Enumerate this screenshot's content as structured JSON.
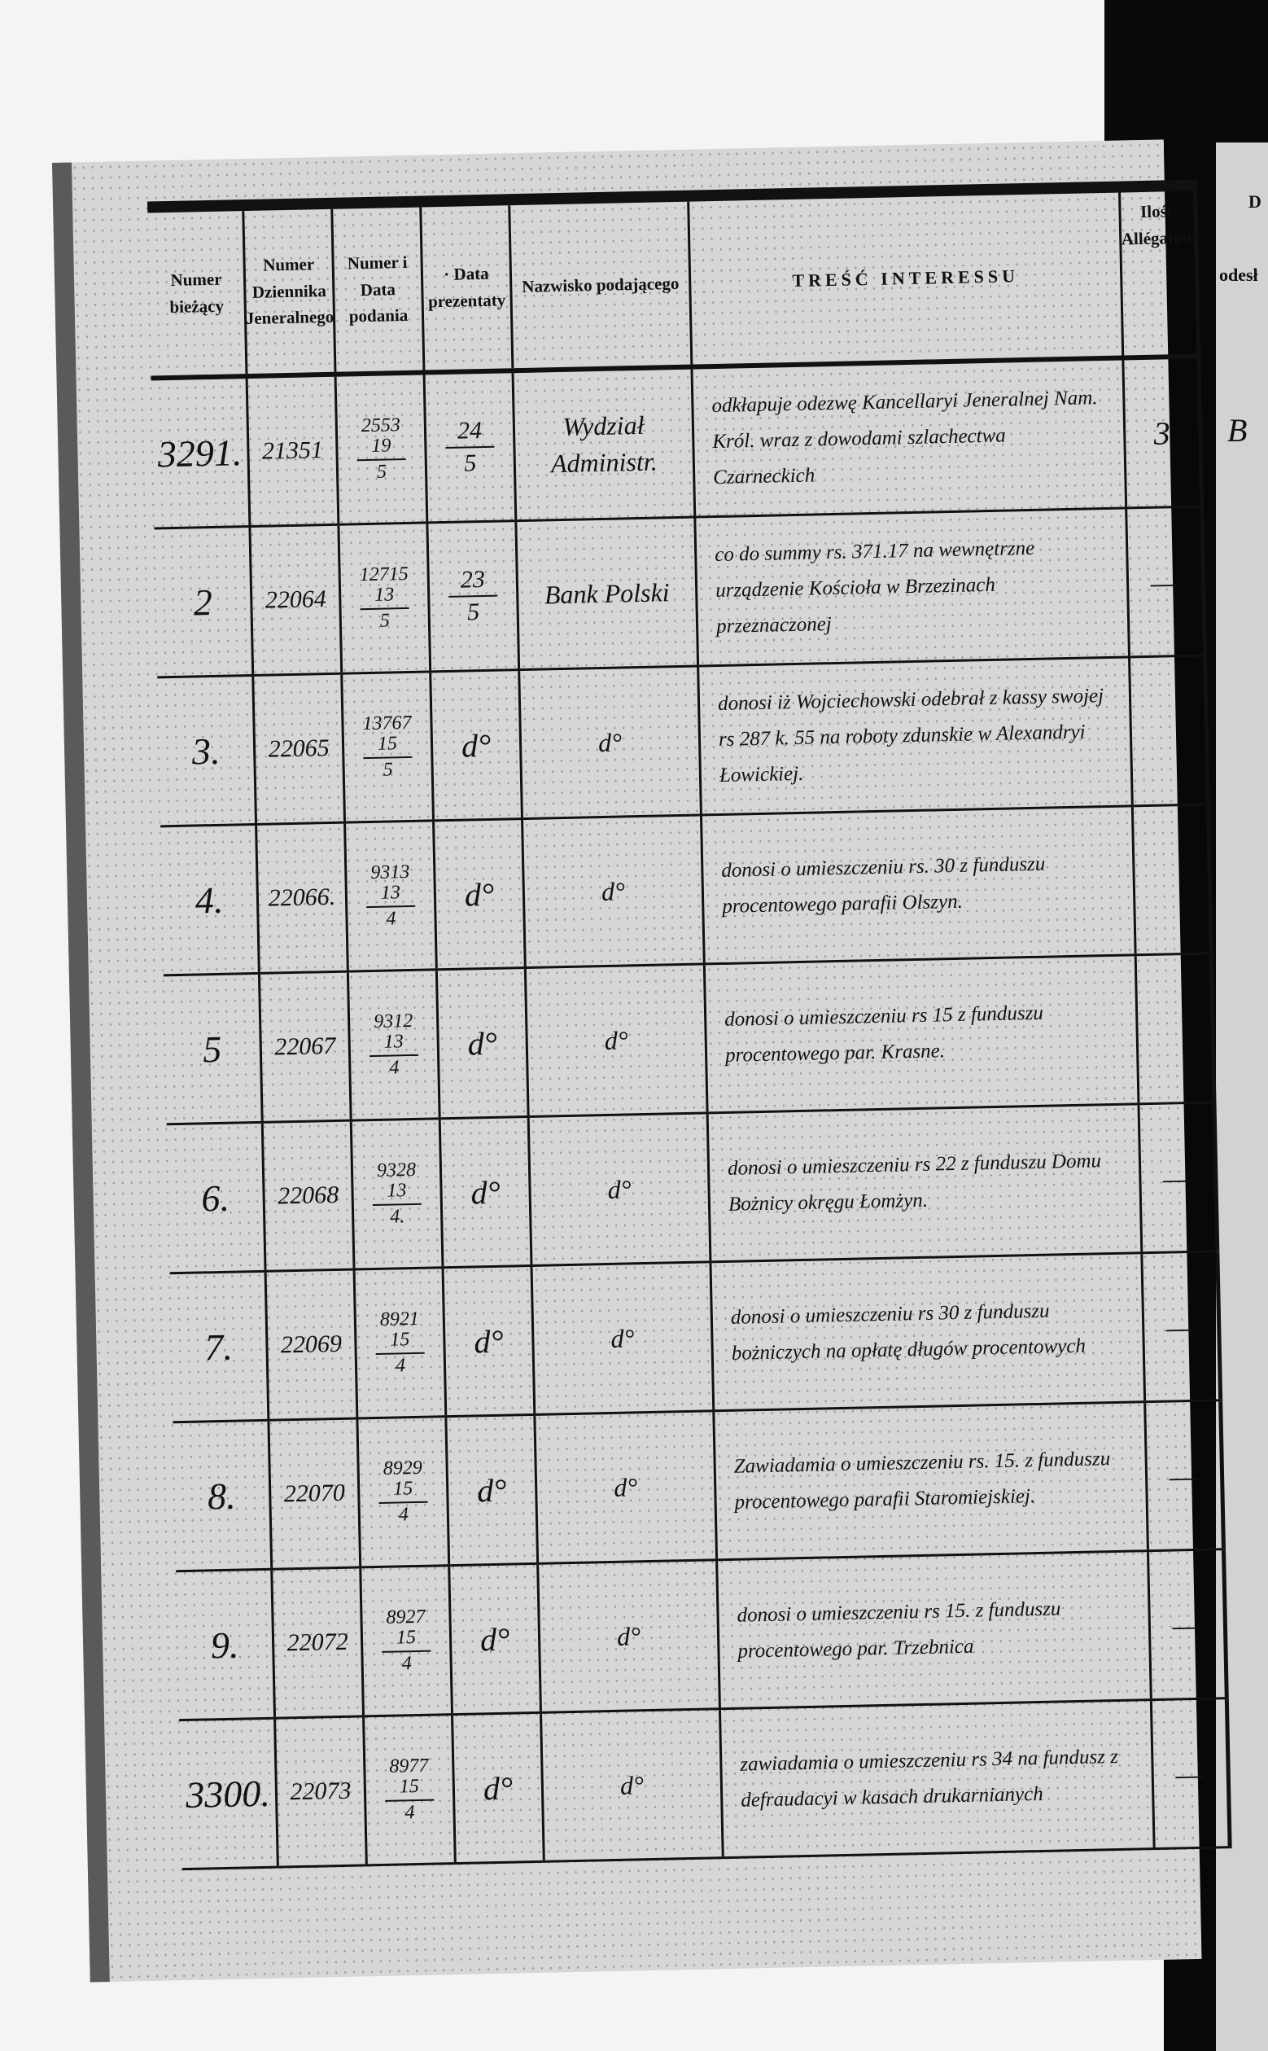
{
  "headers": {
    "numer_biezacy": "Numer bieżący",
    "numer_dziennika": "Numer Dziennika Jeneralnego",
    "numer_data_podania": "Numer i Data podania",
    "data_prezentaty": "· Data prezentaty",
    "nazwisko": "Nazwisko podającego",
    "tresc": "TREŚĆ INTERESSU",
    "ilosc_allegatow": "Ilość Allégatów"
  },
  "right_page": {
    "header_fragment_1": "D",
    "header_fragment_2": "odesł",
    "row_fragment": "B"
  },
  "rows": [
    {
      "nr": "3291.",
      "dziennik": "21351",
      "podanie_nr": "2553",
      "podanie_dzien": "19",
      "podanie_mies": "5",
      "prez_dzien": "24",
      "prez_mies": "5",
      "nazwisko": "Wydział Administr.",
      "tresc": "odkłapuje odezwę Kancellaryi Jeneralnej Nam. Król. wraz z dowodami szlachectwa Czarneckich",
      "allegaty": "3"
    },
    {
      "nr": "2",
      "dziennik": "22064",
      "podanie_nr": "12715",
      "podanie_dzien": "13",
      "podanie_mies": "5",
      "prez_dzien": "23",
      "prez_mies": "5",
      "nazwisko": "Bank Polski",
      "tresc": "co do summy rs. 371.17 na wewnętrzne urządzenie Kościoła w Brzezinach przeznaczonej",
      "allegaty": "—"
    },
    {
      "nr": "3.",
      "dziennik": "22065",
      "podanie_nr": "13767",
      "podanie_dzien": "15",
      "podanie_mies": "5",
      "prez_dzien": "d°",
      "prez_mies": "",
      "nazwisko": "d°",
      "tresc": "donosi iż Wojciechowski odebrał z kassy swojej rs 287 k. 55 na roboty zdunskie w Alexandryi Łowickiej.",
      "allegaty": ""
    },
    {
      "nr": "4.",
      "dziennik": "22066.",
      "podanie_nr": "9313",
      "podanie_dzien": "13",
      "podanie_mies": "4",
      "prez_dzien": "d°",
      "prez_mies": "",
      "nazwisko": "d°",
      "tresc": "donosi o umieszczeniu rs. 30 z funduszu procentowego parafii Olszyn.",
      "allegaty": ""
    },
    {
      "nr": "5",
      "dziennik": "22067",
      "podanie_nr": "9312",
      "podanie_dzien": "13",
      "podanie_mies": "4",
      "prez_dzien": "d°",
      "prez_mies": "",
      "nazwisko": "d°",
      "tresc": "donosi o umieszczeniu rs 15 z funduszu procentowego par. Krasne.",
      "allegaty": ""
    },
    {
      "nr": "6.",
      "dziennik": "22068",
      "podanie_nr": "9328",
      "podanie_dzien": "13",
      "podanie_mies": "4.",
      "prez_dzien": "d°",
      "prez_mies": "",
      "nazwisko": "d°",
      "tresc": "donosi o umieszczeniu rs 22 z funduszu Domu Bożnicy okręgu Łomżyn.",
      "allegaty": "—"
    },
    {
      "nr": "7.",
      "dziennik": "22069",
      "podanie_nr": "8921",
      "podanie_dzien": "15",
      "podanie_mies": "4",
      "prez_dzien": "d°",
      "prez_mies": "",
      "nazwisko": "d°",
      "tresc": "donosi o umieszczeniu rs 30 z funduszu bożniczych na opłatę długów procentowych",
      "allegaty": "—"
    },
    {
      "nr": "8.",
      "dziennik": "22070",
      "podanie_nr": "8929",
      "podanie_dzien": "15",
      "podanie_mies": "4",
      "prez_dzien": "d°",
      "prez_mies": "",
      "nazwisko": "d°",
      "tresc": "Zawiadamia o umieszczeniu rs. 15. z funduszu procentowego parafii Staromiejskiej.",
      "allegaty": "—"
    },
    {
      "nr": "9.",
      "dziennik": "22072",
      "podanie_nr": "8927",
      "podanie_dzien": "15",
      "podanie_mies": "4",
      "prez_dzien": "d°",
      "prez_mies": "",
      "nazwisko": "d°",
      "tresc": "donosi o umieszczeniu rs 15. z funduszu procentowego par. Trzebnica",
      "allegaty": "—"
    },
    {
      "nr": "3300.",
      "dziennik": "22073",
      "podanie_nr": "8977",
      "podanie_dzien": "15",
      "podanie_mies": "4",
      "prez_dzien": "d°",
      "prez_mies": "",
      "nazwisko": "d°",
      "tresc": "zawiadamia o umieszczeniu rs 34 na fundusz z defraudacyi w kasach drukarnianych",
      "allegaty": "—"
    }
  ]
}
